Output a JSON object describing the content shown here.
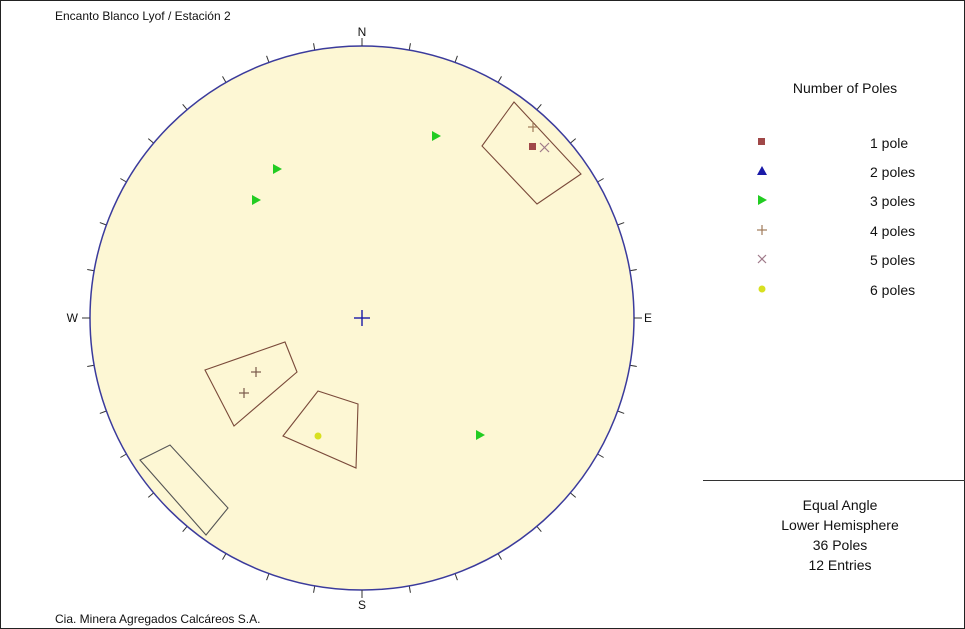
{
  "header": {
    "title": "Encanto Blanco Lyof / Estación 2"
  },
  "footer": {
    "company": "Cia. Minera Agregados Calcáreos S.A."
  },
  "net": {
    "directions": {
      "north": "N",
      "east": "E",
      "south": "S",
      "west": "W"
    },
    "background_color": "#fdf7d4",
    "outline_color": "#3b3b9c"
  },
  "legend": {
    "title": "Number of Poles",
    "items": [
      {
        "label": "1 pole",
        "symbol": "square-icon",
        "color": "#a04848"
      },
      {
        "label": "2 poles",
        "symbol": "triangle-icon",
        "color": "#1a1aa8"
      },
      {
        "label": "3 poles",
        "symbol": "triangle-right-icon",
        "color": "#22cc22"
      },
      {
        "label": "4 poles",
        "symbol": "plus-icon",
        "color": "#a07a5a"
      },
      {
        "label": "5 poles",
        "symbol": "x-icon",
        "color": "#a07a8a"
      },
      {
        "label": "6 poles",
        "symbol": "dot-icon",
        "color": "#d8e020"
      }
    ]
  },
  "info": {
    "projection": "Equal Angle",
    "hemisphere": "Lower Hemisphere",
    "poles": "36 Poles",
    "entries": "12 Entries"
  }
}
